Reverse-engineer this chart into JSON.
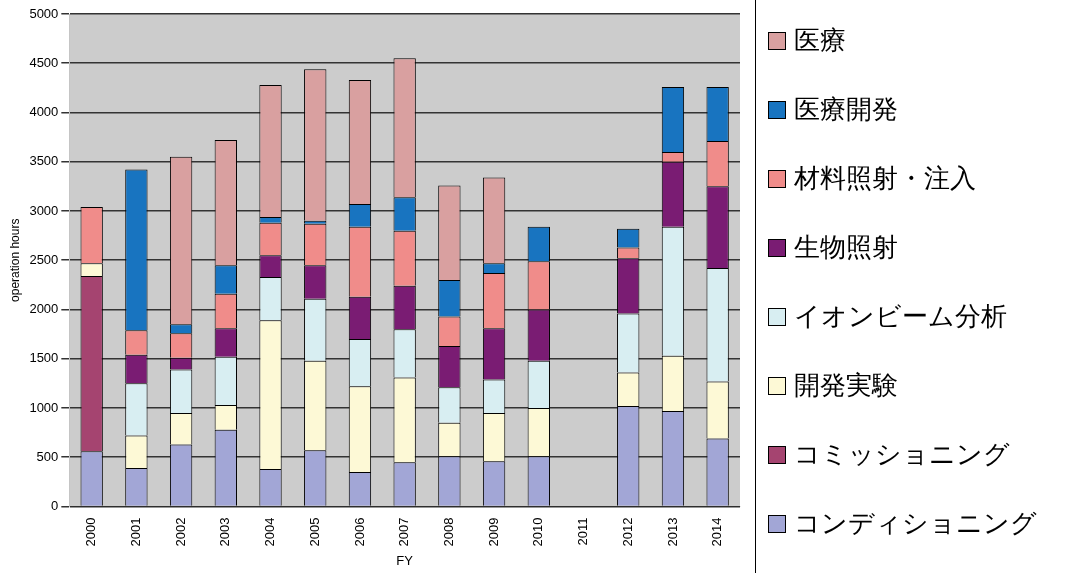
{
  "chart_data": {
    "type": "bar",
    "stacked": true,
    "xlabel": "FY",
    "ylabel": "operation hours",
    "categories": [
      "2000",
      "2001",
      "2002",
      "2003",
      "2004",
      "2005",
      "2006",
      "2007",
      "2008",
      "2009",
      "2010",
      "2011",
      "2012",
      "2013",
      "2014"
    ],
    "ylim": [
      0,
      5000
    ],
    "yticks": [
      0,
      500,
      1000,
      1500,
      2000,
      2500,
      3000,
      3500,
      4000,
      4500,
      5000
    ],
    "grid": "y",
    "legend": "right",
    "series": [
      {
        "name": "コンディショニング",
        "color": "#a2a6d6",
        "values": [
          560,
          390,
          630,
          780,
          380,
          570,
          350,
          450,
          510,
          460,
          510,
          0,
          1020,
          970,
          690
        ]
      },
      {
        "name": "コミッショニング",
        "color": "#a54470",
        "values": [
          1780,
          0,
          0,
          0,
          0,
          0,
          0,
          0,
          0,
          0,
          0,
          0,
          0,
          0,
          0
        ]
      },
      {
        "name": "開発実験",
        "color": "#fdf9d6",
        "values": [
          130,
          330,
          320,
          250,
          1510,
          910,
          870,
          860,
          340,
          490,
          490,
          0,
          340,
          560,
          580
        ]
      },
      {
        "name": "イオンビーム分析",
        "color": "#d8eef2",
        "values": [
          0,
          530,
          440,
          490,
          440,
          630,
          480,
          490,
          360,
          340,
          480,
          0,
          600,
          1310,
          1150
        ]
      },
      {
        "name": "生物照射",
        "color": "#7a1c73",
        "values": [
          0,
          290,
          120,
          290,
          220,
          340,
          430,
          440,
          420,
          520,
          520,
          0,
          560,
          660,
          830
        ]
      },
      {
        "name": "材料照射・注入",
        "color": "#f08c8a",
        "values": [
          570,
          250,
          250,
          350,
          330,
          420,
          710,
          560,
          300,
          560,
          490,
          0,
          110,
          100,
          460
        ]
      },
      {
        "name": "医療開発",
        "color": "#1874c0",
        "values": [
          0,
          1630,
          90,
          290,
          60,
          30,
          230,
          340,
          370,
          100,
          350,
          0,
          190,
          660,
          550
        ]
      },
      {
        "name": "医療",
        "color": "#d9a0a0",
        "values": [
          0,
          0,
          1700,
          1270,
          1340,
          1540,
          1260,
          1410,
          960,
          870,
          0,
          0,
          0,
          0,
          null
        ]
      }
    ]
  }
}
